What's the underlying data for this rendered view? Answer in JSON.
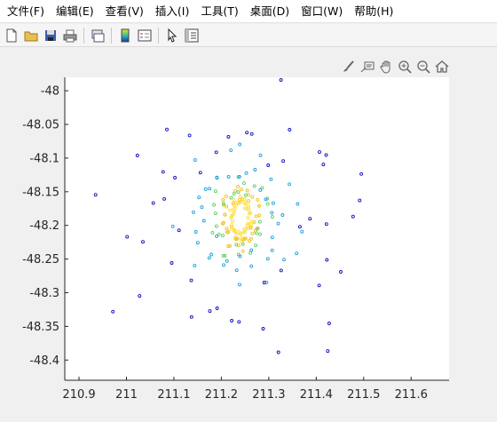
{
  "menu": {
    "items": [
      "文件(F)",
      "编辑(E)",
      "查看(V)",
      "插入(I)",
      "工具(T)",
      "桌面(D)",
      "窗口(W)",
      "帮助(H)"
    ]
  },
  "toolbar": {
    "icons": [
      "new-file-icon",
      "open-folder-icon",
      "save-icon",
      "print-icon",
      "link-plot-icon",
      "colorbar-icon",
      "legend-icon",
      "pointer-icon",
      "property-editor-icon"
    ]
  },
  "axes_toolbar": {
    "icons": [
      "brush-icon",
      "datatip-icon",
      "pan-icon",
      "zoom-in-icon",
      "zoom-out-icon",
      "home-icon"
    ]
  },
  "colors": {
    "outer_ring": "#1010c0",
    "mid_ring": "#20a0e0",
    "inner_ring": "#60d060",
    "center": "#f0c020",
    "core": "#ffe040"
  },
  "chart_data": {
    "type": "scatter",
    "title": "",
    "xlabel": "",
    "ylabel": "",
    "xlim": [
      210.87,
      211.68
    ],
    "ylim": [
      -48.43,
      -47.98
    ],
    "xticks": [
      210.9,
      211,
      211.1,
      211.2,
      211.3,
      211.4,
      211.5,
      211.6
    ],
    "xtick_labels": [
      "210.9",
      "211",
      "211.1",
      "211.2",
      "211.3",
      "211.4",
      "211.5",
      "211.6"
    ],
    "yticks": [
      -48,
      -48.05,
      -48.1,
      -48.15,
      -48.2,
      -48.25,
      -48.3,
      -48.35,
      -48.4
    ],
    "ytick_labels": [
      "-48",
      "-48.05",
      "-48.1",
      "-48.15",
      "-48.2",
      "-48.25",
      "-48.3",
      "-48.35",
      "-48.4"
    ],
    "grid": false,
    "center": [
      211.24,
      -48.19
    ],
    "rings": [
      {
        "color_level": "core",
        "count": 60,
        "radius_x": 0.025,
        "radius_y": 0.035
      },
      {
        "color_level": "center",
        "count": 40,
        "radius_x": 0.045,
        "radius_y": 0.05
      },
      {
        "color_level": "inner_ring",
        "count": 30,
        "radius_x": 0.07,
        "radius_y": 0.065
      },
      {
        "color_level": "mid_ring",
        "count": 24,
        "radius_x": 0.1,
        "radius_y": 0.085
      },
      {
        "color_level": "mid_ring",
        "count": 22,
        "radius_x": 0.15,
        "radius_y": 0.12
      },
      {
        "color_level": "outer_ring",
        "count": 18,
        "radius_x": 0.22,
        "radius_y": 0.16
      },
      {
        "color_level": "outer_ring",
        "count": 16,
        "radius_x": 0.29,
        "radius_y": 0.21
      },
      {
        "color_level": "outer_ring",
        "count": 14,
        "radius_x": 0.37,
        "radius_y": 0.24
      }
    ]
  }
}
